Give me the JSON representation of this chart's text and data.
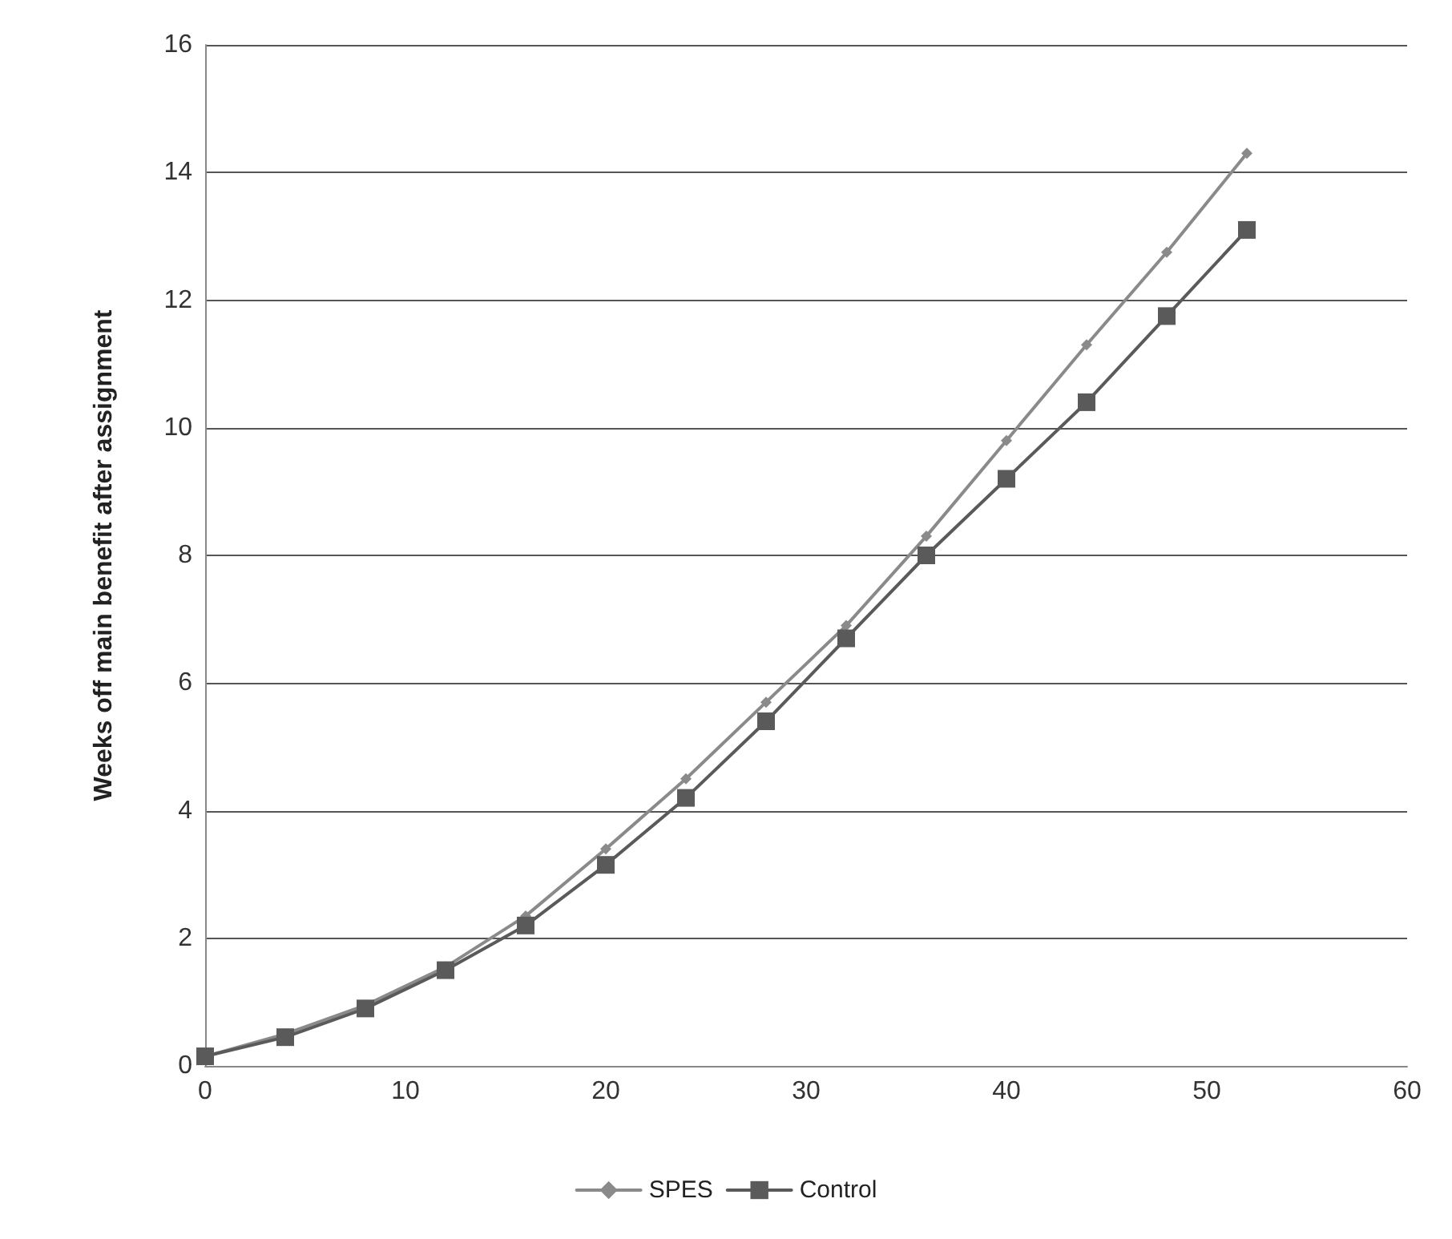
{
  "chart_data": {
    "type": "line",
    "ylabel": "Weeks off main benefit after assignment",
    "x": [
      0,
      4,
      8,
      12,
      16,
      20,
      24,
      28,
      32,
      36,
      40,
      44,
      48,
      52
    ],
    "series": [
      {
        "name": "SPES",
        "color": "#8a8a8a",
        "marker": "diamond",
        "values": [
          0.15,
          0.5,
          0.95,
          1.55,
          2.35,
          3.4,
          4.5,
          5.7,
          6.9,
          8.3,
          9.8,
          11.3,
          12.75,
          14.3
        ]
      },
      {
        "name": "Control",
        "color": "#5a5a5a",
        "marker": "square",
        "values": [
          0.15,
          0.45,
          0.9,
          1.5,
          2.2,
          3.15,
          4.2,
          5.4,
          6.7,
          8.0,
          9.2,
          10.4,
          11.75,
          13.1
        ]
      }
    ],
    "xlim": [
      0,
      60
    ],
    "xticks": [
      0,
      10,
      20,
      30,
      40,
      50,
      60
    ],
    "ylim": [
      0,
      16
    ],
    "yticks": [
      0,
      2,
      4,
      6,
      8,
      10,
      12,
      14,
      16
    ],
    "grid": "y",
    "legend": "bottom"
  }
}
